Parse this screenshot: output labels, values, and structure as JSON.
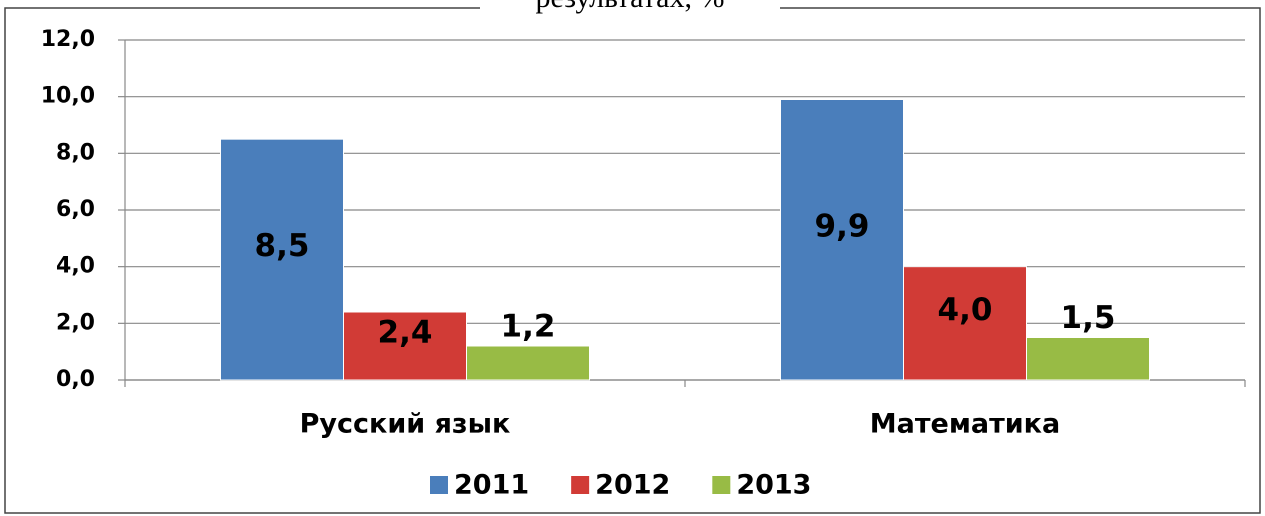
{
  "chart_data": {
    "type": "bar",
    "title": "результатах, %",
    "categories": [
      "Русский язык",
      "Математика"
    ],
    "series": [
      {
        "name": "2011",
        "color": "#4a7ebb",
        "values": [
          8.5,
          9.9
        ],
        "value_labels": [
          "8,5",
          "9,9"
        ]
      },
      {
        "name": "2012",
        "color": "#d13b36",
        "values": [
          2.4,
          4.0
        ],
        "value_labels": [
          "2,4",
          "4,0"
        ]
      },
      {
        "name": "2013",
        "color": "#98bb45",
        "values": [
          1.2,
          1.5
        ],
        "value_labels": [
          "1,2",
          "1,5"
        ]
      }
    ],
    "ylim": [
      0,
      12
    ],
    "yticks": [
      {
        "value": 0,
        "label": "0,0"
      },
      {
        "value": 2,
        "label": "2,0"
      },
      {
        "value": 4,
        "label": "4,0"
      },
      {
        "value": 6,
        "label": "6,0"
      },
      {
        "value": 8,
        "label": "8,0"
      },
      {
        "value": 10,
        "label": "10,0"
      },
      {
        "value": 12,
        "label": "12,0"
      }
    ],
    "grid": true,
    "legend": "bottom"
  }
}
